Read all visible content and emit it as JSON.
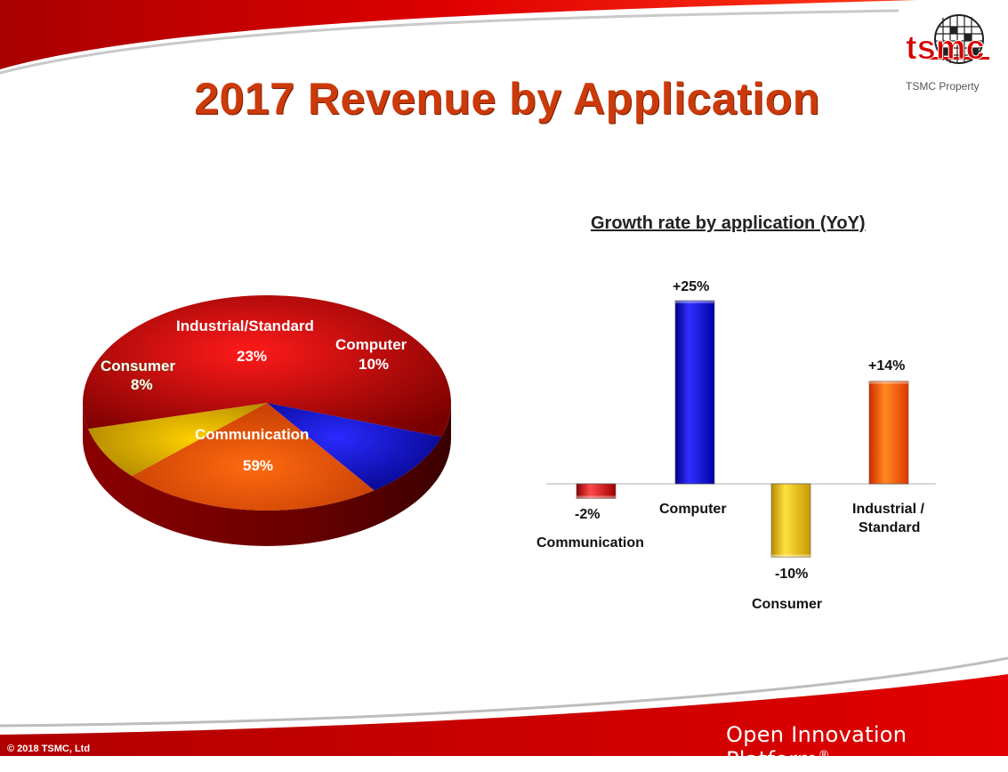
{
  "slide": {
    "title": "2017 Revenue by Application",
    "logo_text": "tsmc",
    "property_label": "TSMC Property",
    "copyright": "© 2018 TSMC, Ltd",
    "footer_brand": "Open Innovation Platform",
    "footer_mark": "®"
  },
  "colors": {
    "title": "#cc3a0a",
    "communication": "#d40000",
    "computer": "#1414c8",
    "consumer": "#e8b400",
    "industrial": "#f05a00",
    "footer_band": "#d10000"
  },
  "chart_data": [
    {
      "type": "pie",
      "title": "",
      "slices": [
        {
          "label": "Communication",
          "value": 59,
          "value_label": "59%"
        },
        {
          "label": "Computer",
          "value": 10,
          "value_label": "10%"
        },
        {
          "label": "Industrial/Standard",
          "value": 23,
          "value_label": "23%"
        },
        {
          "label": "Consumer",
          "value": 8,
          "value_label": "8%"
        }
      ]
    },
    {
      "type": "bar",
      "title": "Growth rate by application (YoY)",
      "categories": [
        "Communication",
        "Computer",
        "Consumer",
        "Industrial / Standard"
      ],
      "category_lines": [
        [
          "Communication"
        ],
        [
          "Computer"
        ],
        [
          "Consumer"
        ],
        [
          "Industrial /",
          "Standard"
        ]
      ],
      "values": [
        -2,
        25,
        -10,
        14
      ],
      "value_labels": [
        "-2%",
        "+25%",
        "-10%",
        "+14%"
      ],
      "ylim": [
        -10,
        25
      ],
      "grid": false
    }
  ]
}
